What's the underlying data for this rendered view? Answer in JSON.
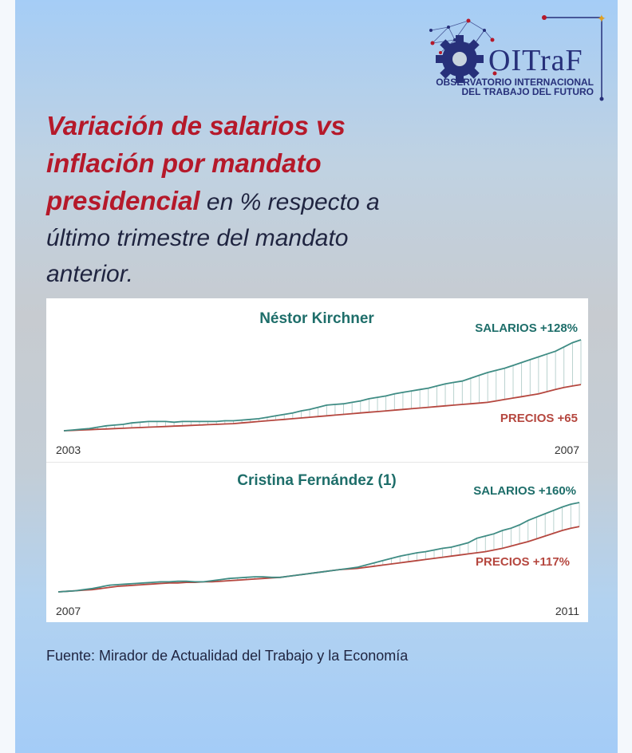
{
  "logo": {
    "name": "OITraF",
    "subtitle_line1": "OBSERVATORIO INTERNACIONAL",
    "subtitle_line2": "DEL TRABAJO DEL FUTURO"
  },
  "headline": {
    "bold_part1": "Variación de salarios vs inflación por mandato presidencial",
    "rest_part1": " en % respecto a último trimestre del mandato anterior."
  },
  "colors": {
    "salarios": "#3f8c84",
    "precios": "#b5473f",
    "title": "#1e6e6a",
    "headline_red": "#b5192a",
    "text_dark": "#1f2440"
  },
  "chart_data": [
    {
      "type": "line",
      "title": "Néstor Kirchner",
      "x_start_label": "2003",
      "x_end_label": "2007",
      "series": [
        {
          "name": "SALARIOS +128%",
          "values": [
            0,
            1,
            2,
            3,
            5,
            7,
            8,
            9,
            11,
            12,
            13,
            13,
            13,
            12,
            13,
            13,
            13,
            13,
            13,
            14,
            14,
            15,
            16,
            17,
            19,
            21,
            23,
            25,
            28,
            30,
            33,
            36,
            37,
            38,
            40,
            42,
            45,
            47,
            49,
            52,
            54,
            56,
            58,
            60,
            63,
            66,
            68,
            70,
            74,
            78,
            82,
            85,
            88,
            92,
            96,
            100,
            104,
            108,
            112,
            118,
            124,
            128
          ]
        },
        {
          "name": "PRECIOS +65",
          "values": [
            0,
            0.5,
            1,
            1.5,
            2,
            2.5,
            3,
            3.5,
            4,
            4.5,
            5,
            5.5,
            6,
            6.5,
            7,
            7.5,
            8,
            8.5,
            9,
            9.5,
            10,
            11,
            12,
            13,
            14,
            15,
            16,
            17,
            18,
            19,
            20,
            21,
            22,
            23,
            24,
            25,
            26,
            27,
            28,
            29,
            30,
            31,
            32,
            33,
            34,
            35,
            36,
            37,
            38,
            39,
            40,
            42,
            44,
            46,
            48,
            50,
            52,
            55,
            58,
            61,
            63,
            65
          ]
        }
      ]
    },
    {
      "type": "line",
      "title": "Cristina Fernández (1)",
      "x_start_label": "2007",
      "x_end_label": "2011",
      "series": [
        {
          "name": "SALARIOS +160%",
          "values": [
            0,
            1,
            2,
            4,
            6,
            9,
            12,
            13,
            14,
            15,
            16,
            17,
            18,
            18,
            19,
            19,
            18,
            18,
            20,
            22,
            24,
            25,
            26,
            27,
            27,
            26,
            26,
            28,
            30,
            32,
            34,
            36,
            38,
            40,
            42,
            44,
            48,
            52,
            56,
            60,
            64,
            67,
            70,
            72,
            75,
            78,
            80,
            84,
            88,
            96,
            100,
            104,
            110,
            114,
            120,
            128,
            134,
            140,
            146,
            152,
            157,
            160
          ]
        },
        {
          "name": "PRECIOS +117%",
          "values": [
            0,
            1,
            2,
            3,
            4,
            6,
            8,
            10,
            11,
            12,
            13,
            14,
            15,
            16,
            16,
            17,
            17,
            18,
            18,
            19,
            20,
            21,
            22,
            23,
            24,
            25,
            26,
            28,
            30,
            32,
            34,
            36,
            38,
            40,
            41,
            42,
            44,
            46,
            48,
            50,
            52,
            54,
            56,
            58,
            60,
            62,
            64,
            66,
            68,
            70,
            72,
            75,
            78,
            82,
            86,
            90,
            95,
            100,
            105,
            110,
            114,
            117
          ]
        }
      ]
    }
  ],
  "source": "Fuente: Mirador de Actualidad del Trabajo y la Economía"
}
